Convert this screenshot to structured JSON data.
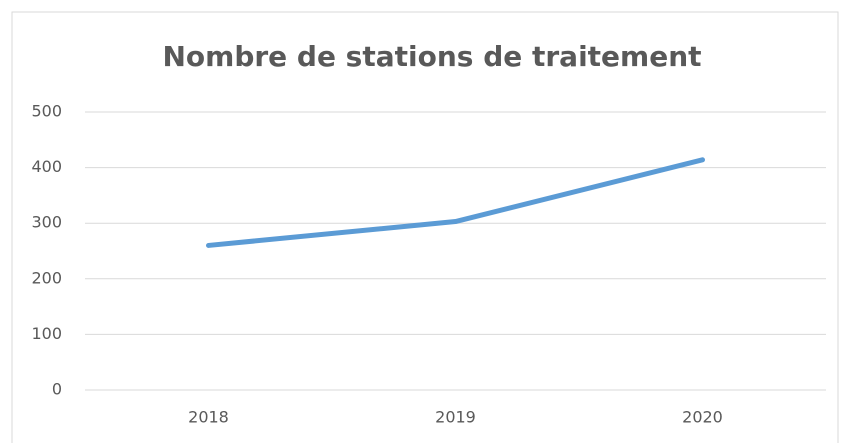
{
  "chart_data": {
    "type": "line",
    "title": "Nombre de stations de traitement",
    "categories": [
      "2018",
      "2019",
      "2020"
    ],
    "series": [
      {
        "name": "Nombre de stations de traitement",
        "color": "#5b9bd5",
        "values": [
          260,
          303,
          414
        ]
      }
    ],
    "ylim": [
      0,
      500
    ],
    "yticks": [
      0,
      100,
      200,
      300,
      400,
      500
    ],
    "grid": true
  }
}
